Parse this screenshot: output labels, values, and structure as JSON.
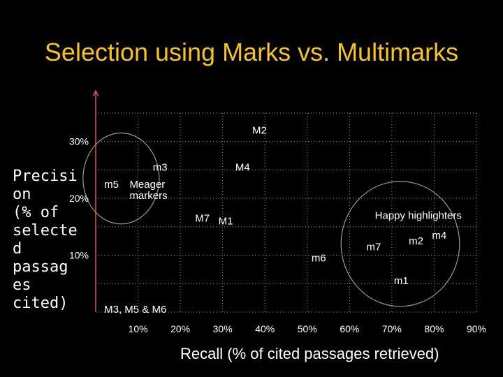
{
  "title": "Selection using Marks vs. Multimarks",
  "colors": {
    "background": "#000000",
    "title": "#f5c518",
    "text": "#ffffff",
    "grid": "#9a9a9a",
    "axis": "#d9534f"
  },
  "chart_data": {
    "type": "scatter",
    "title": "Selection using Marks vs. Multimarks",
    "xlabel": "Recall (% of cited passages retrieved)",
    "ylabel": "Precisi\non\n(% of\nselecte\nd\npassag\nes\ncited)",
    "xlim": [
      0,
      90
    ],
    "ylim": [
      0,
      35
    ],
    "x_ticks": [
      10,
      20,
      30,
      40,
      50,
      60,
      70,
      80,
      90
    ],
    "x_tick_labels": [
      "10%",
      "20%",
      "30%",
      "40%",
      "50%",
      "60%",
      "70%",
      "80%",
      "90%"
    ],
    "y_ticks": [
      10,
      20,
      30
    ],
    "y_tick_labels": [
      "10%",
      "20%",
      "30%"
    ],
    "grid": true,
    "points": [
      {
        "label": "M2",
        "x": 37,
        "y": 32
      },
      {
        "label": "M4",
        "x": 33,
        "y": 25.5
      },
      {
        "label": "m3",
        "x": 13.5,
        "y": 25.5
      },
      {
        "label": "m5",
        "x": 2,
        "y": 22.5
      },
      {
        "label": "M7",
        "x": 23.5,
        "y": 16.5
      },
      {
        "label": "M1",
        "x": 29,
        "y": 16
      },
      {
        "label": "m7",
        "x": 64,
        "y": 11.5
      },
      {
        "label": "m2",
        "x": 74,
        "y": 12.5
      },
      {
        "label": "m4",
        "x": 79.5,
        "y": 13.5
      },
      {
        "label": "m6",
        "x": 51,
        "y": 9.5
      },
      {
        "label": "m1",
        "x": 70.5,
        "y": 5.5
      },
      {
        "label": "M3, M5 & M6",
        "x": 2,
        "y": 0.5
      }
    ],
    "annotations": [
      {
        "text": "Meager",
        "x": 8,
        "y": 22.5
      },
      {
        "text": "markers",
        "x": 8,
        "y": 20.5
      },
      {
        "text": "Happy highlighters",
        "x": 66,
        "y": 17
      }
    ],
    "groups": [
      {
        "name": "Meager markers",
        "cx": 6,
        "cy": 23.5,
        "rx": 9,
        "ry": 8
      },
      {
        "name": "Happy highlighters",
        "cx": 72,
        "cy": 12,
        "rx": 14,
        "ry": 11
      }
    ]
  }
}
